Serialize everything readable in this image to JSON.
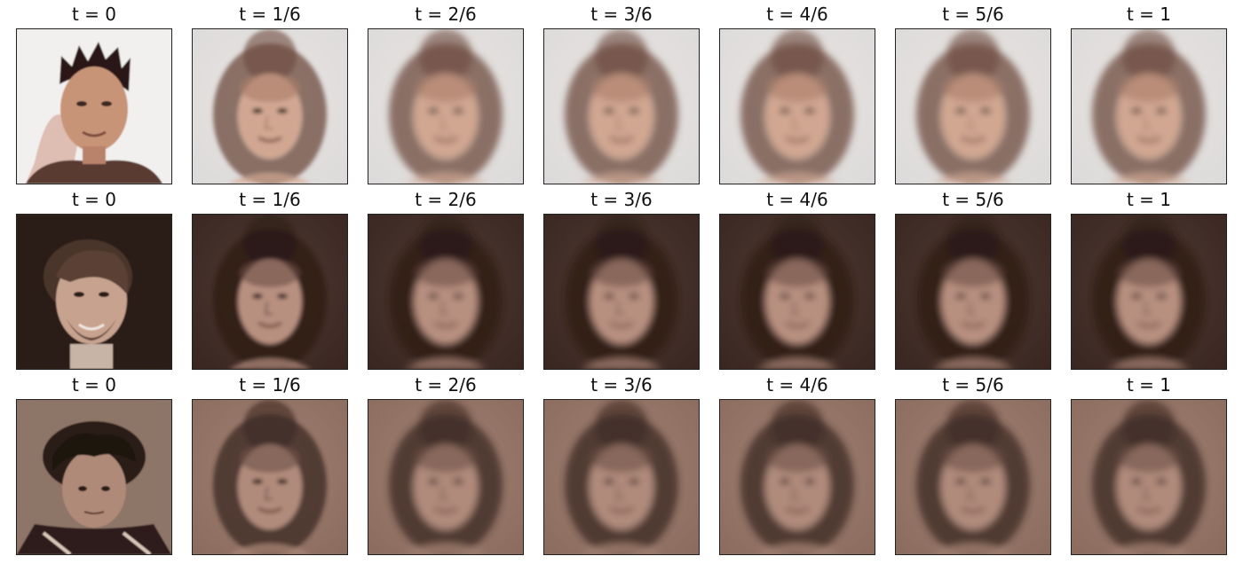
{
  "figure": {
    "rows": [
      {
        "tone": "light",
        "colors": {
          "bg": "#dcdada",
          "bg2": "#e8e4e1",
          "skin": "#d1a792",
          "hair": "#6d4a3e",
          "shade": "#a97c68"
        },
        "panels": [
          {
            "label": "t = 0",
            "kind": "source-male-spiky"
          },
          {
            "label": "t = 1/6",
            "kind": "morph"
          },
          {
            "label": "t = 2/6",
            "kind": "average-face"
          },
          {
            "label": "t = 3/6",
            "kind": "average-face"
          },
          {
            "label": "t = 4/6",
            "kind": "average-face"
          },
          {
            "label": "t = 5/6",
            "kind": "average-face"
          },
          {
            "label": "t = 1",
            "kind": "average-face"
          }
        ]
      },
      {
        "tone": "dark",
        "colors": {
          "bg": "#3a2620",
          "bg2": "#4d3a33",
          "skin": "#b89080",
          "hair": "#2b1a15",
          "shade": "#6b4f45"
        },
        "panels": [
          {
            "label": "t = 0",
            "kind": "source-male-beard"
          },
          {
            "label": "t = 1/6",
            "kind": "morph"
          },
          {
            "label": "t = 2/6",
            "kind": "average-face"
          },
          {
            "label": "t = 3/6",
            "kind": "average-face"
          },
          {
            "label": "t = 4/6",
            "kind": "average-face"
          },
          {
            "label": "t = 5/6",
            "kind": "average-face"
          },
          {
            "label": "t = 1",
            "kind": "average-face"
          }
        ]
      },
      {
        "tone": "medium",
        "colors": {
          "bg": "#8a6b5e",
          "bg2": "#a08072",
          "skin": "#b08b7b",
          "hair": "#3b2822",
          "shade": "#6e5248"
        },
        "panels": [
          {
            "label": "t = 0",
            "kind": "source-male-curly"
          },
          {
            "label": "t = 1/6",
            "kind": "morph"
          },
          {
            "label": "t = 2/6",
            "kind": "average-face"
          },
          {
            "label": "t = 3/6",
            "kind": "average-face"
          },
          {
            "label": "t = 4/6",
            "kind": "average-face"
          },
          {
            "label": "t = 5/6",
            "kind": "average-face"
          },
          {
            "label": "t = 1",
            "kind": "average-face"
          }
        ]
      }
    ]
  }
}
